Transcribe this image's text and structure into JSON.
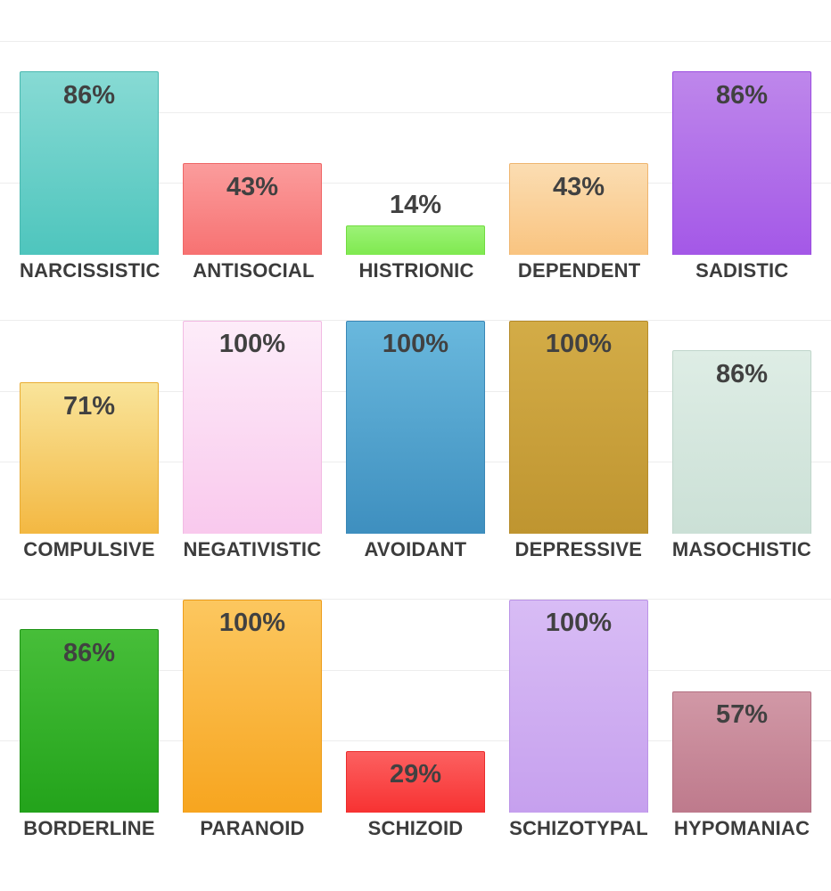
{
  "styles": {
    "value_color": "#414141",
    "category_color": "#3c3c3c",
    "grid_color": "#ededed",
    "background": "#ffffff"
  },
  "chart_data": {
    "type": "bar",
    "title": "",
    "xlabel": "",
    "ylabel": "",
    "unit": "%",
    "ylim": [
      0,
      100
    ],
    "grid": true,
    "gridlines_pct": [
      33.33,
      66.67
    ],
    "rows": [
      {
        "bars": [
          {
            "label": "NARCISSISTIC",
            "value": 86,
            "color_top": "#87dad4",
            "color_bottom": "#4ec5bd",
            "border": "#49b8b0"
          },
          {
            "label": "ANTISOCIAL",
            "value": 43,
            "color_top": "#fb9c9c",
            "color_bottom": "#f77272",
            "border": "#ef6666"
          },
          {
            "label": "HISTRIONIC",
            "value": 14,
            "color_top": "#9cf277",
            "color_bottom": "#7fe94f",
            "border": "#72db41"
          },
          {
            "label": "DEPENDENT",
            "value": 43,
            "color_top": "#fbddb2",
            "color_bottom": "#f9c480",
            "border": "#efb56f"
          },
          {
            "label": "SADISTIC",
            "value": 86,
            "color_top": "#be87eb",
            "color_bottom": "#a458e7",
            "border": "#9b4ce0"
          }
        ]
      },
      {
        "bars": [
          {
            "label": "COMPULSIVE",
            "value": 71,
            "color_top": "#f9e49a",
            "color_bottom": "#f3b842",
            "border": "#e9ac33"
          },
          {
            "label": "NEGATIVISTIC",
            "value": 100,
            "color_top": "#fdecf9",
            "color_bottom": "#f9c9ed",
            "border": "#f2bbe3"
          },
          {
            "label": "AVOIDANT",
            "value": 100,
            "color_top": "#69b8dd",
            "color_bottom": "#3e8fbf",
            "border": "#3a87b6"
          },
          {
            "label": "DEPRESSIVE",
            "value": 100,
            "color_top": "#d3ac47",
            "color_bottom": "#bf9530",
            "border": "#b58b29"
          },
          {
            "label": "MASOCHISTIC",
            "value": 86,
            "color_top": "#deede5",
            "color_bottom": "#cbe0d6",
            "border": "#c0d6cb"
          }
        ]
      },
      {
        "bars": [
          {
            "label": "BORDERLINE",
            "value": 86,
            "color_top": "#47be39",
            "color_bottom": "#23a31b",
            "border": "#209417"
          },
          {
            "label": "PARANOID",
            "value": 100,
            "color_top": "#fcc75f",
            "color_bottom": "#f7a51f",
            "border": "#ed9d1b"
          },
          {
            "label": "SCHIZOID",
            "value": 29,
            "color_top": "#fc6060",
            "color_bottom": "#f73232",
            "border": "#ea2c2c"
          },
          {
            "label": "SCHIZOTYPAL",
            "value": 100,
            "color_top": "#d8bcf5",
            "color_bottom": "#c6a0ee",
            "border": "#bb93e7"
          },
          {
            "label": "HYPOMANIAC",
            "value": 57,
            "color_top": "#d198a6",
            "color_bottom": "#be7a8c",
            "border": "#b26f81"
          }
        ]
      }
    ]
  }
}
